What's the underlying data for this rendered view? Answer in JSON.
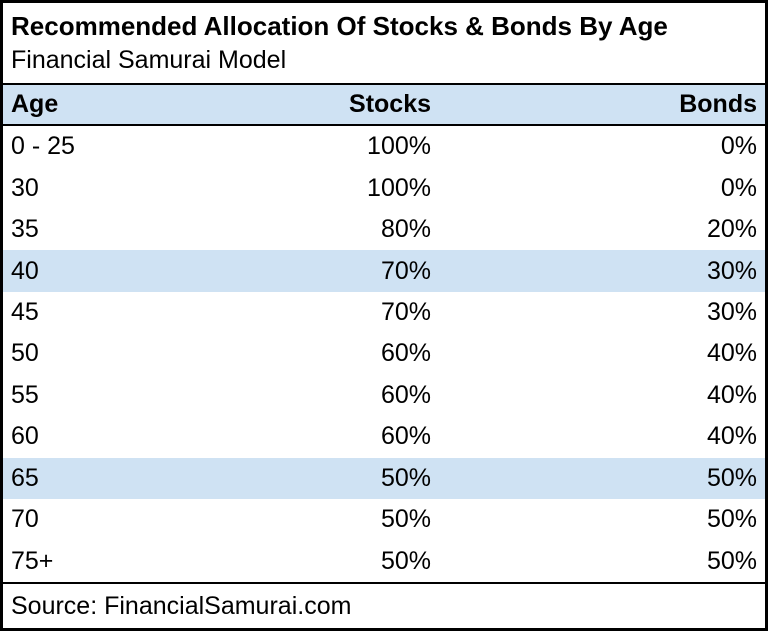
{
  "table": {
    "title": "Recommended Allocation Of Stocks & Bonds By Age",
    "subtitle": "Financial Samurai Model",
    "columns": {
      "age": "Age",
      "stocks": "Stocks",
      "bonds": "Bonds"
    },
    "rows": [
      {
        "age": "0 - 25",
        "stocks": "100%",
        "bonds": "0%",
        "highlighted": false
      },
      {
        "age": "30",
        "stocks": "100%",
        "bonds": "0%",
        "highlighted": false
      },
      {
        "age": "35",
        "stocks": "80%",
        "bonds": "20%",
        "highlighted": false
      },
      {
        "age": "40",
        "stocks": "70%",
        "bonds": "30%",
        "highlighted": true
      },
      {
        "age": "45",
        "stocks": "70%",
        "bonds": "30%",
        "highlighted": false
      },
      {
        "age": "50",
        "stocks": "60%",
        "bonds": "40%",
        "highlighted": false
      },
      {
        "age": "55",
        "stocks": "60%",
        "bonds": "40%",
        "highlighted": false
      },
      {
        "age": "60",
        "stocks": "60%",
        "bonds": "40%",
        "highlighted": false
      },
      {
        "age": "65",
        "stocks": "50%",
        "bonds": "50%",
        "highlighted": true
      },
      {
        "age": "70",
        "stocks": "50%",
        "bonds": "50%",
        "highlighted": false
      },
      {
        "age": "75+",
        "stocks": "50%",
        "bonds": "50%",
        "highlighted": false
      }
    ],
    "source": "Source: FinancialSamurai.com"
  },
  "colors": {
    "header_background": "#cfe2f3",
    "highlight_row_background": "#cfe2f3",
    "border": "#000000",
    "text": "#000000",
    "background": "#ffffff"
  },
  "chart_data": {
    "type": "table",
    "title": "Recommended Allocation Of Stocks & Bonds By Age",
    "subtitle": "Financial Samurai Model",
    "columns": [
      "Age",
      "Stocks",
      "Bonds"
    ],
    "categories": [
      "0 - 25",
      "30",
      "35",
      "40",
      "45",
      "50",
      "55",
      "60",
      "65",
      "70",
      "75+"
    ],
    "series": [
      {
        "name": "Stocks",
        "unit": "%",
        "values": [
          100,
          100,
          80,
          70,
          70,
          60,
          60,
          60,
          50,
          50,
          50
        ]
      },
      {
        "name": "Bonds",
        "unit": "%",
        "values": [
          0,
          0,
          20,
          30,
          30,
          40,
          40,
          40,
          50,
          50,
          50
        ]
      }
    ],
    "highlighted_categories": [
      "40",
      "65"
    ],
    "source": "Source: FinancialSamurai.com"
  }
}
